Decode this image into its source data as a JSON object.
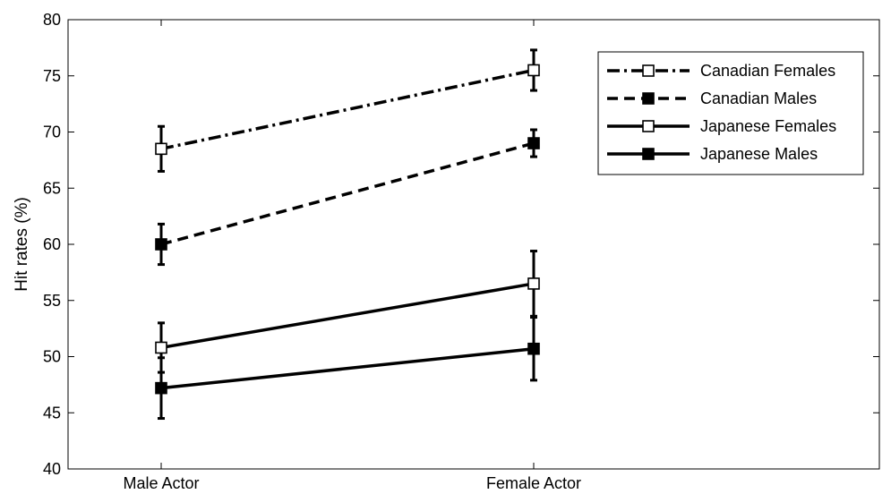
{
  "chart_data": {
    "type": "line",
    "title": "",
    "xlabel": "",
    "ylabel": "Hit rates (%)",
    "categories": [
      "Male Actor",
      "Female Actor"
    ],
    "ylim": [
      40,
      80
    ],
    "yticks": [
      40,
      45,
      50,
      55,
      60,
      65,
      70,
      75,
      80
    ],
    "grid": false,
    "legend_position": "top-right",
    "series": [
      {
        "name": "Canadian Females",
        "values": [
          68.5,
          75.5
        ],
        "errors": [
          2.0,
          1.8
        ],
        "line_style": "dash-dot",
        "marker": "open-square"
      },
      {
        "name": "Canadian Males",
        "values": [
          60.0,
          69.0
        ],
        "errors": [
          1.8,
          1.2
        ],
        "line_style": "dashed",
        "marker": "filled-square"
      },
      {
        "name": "Japanese Females",
        "values": [
          50.8,
          56.5
        ],
        "errors": [
          2.2,
          2.9
        ],
        "line_style": "solid",
        "marker": "open-square"
      },
      {
        "name": "Japanese Males",
        "values": [
          47.2,
          50.7
        ],
        "errors": [
          2.7,
          2.8
        ],
        "line_style": "solid",
        "marker": "filled-square"
      }
    ],
    "colors": {
      "line": "#000000",
      "background": "#ffffff"
    }
  }
}
